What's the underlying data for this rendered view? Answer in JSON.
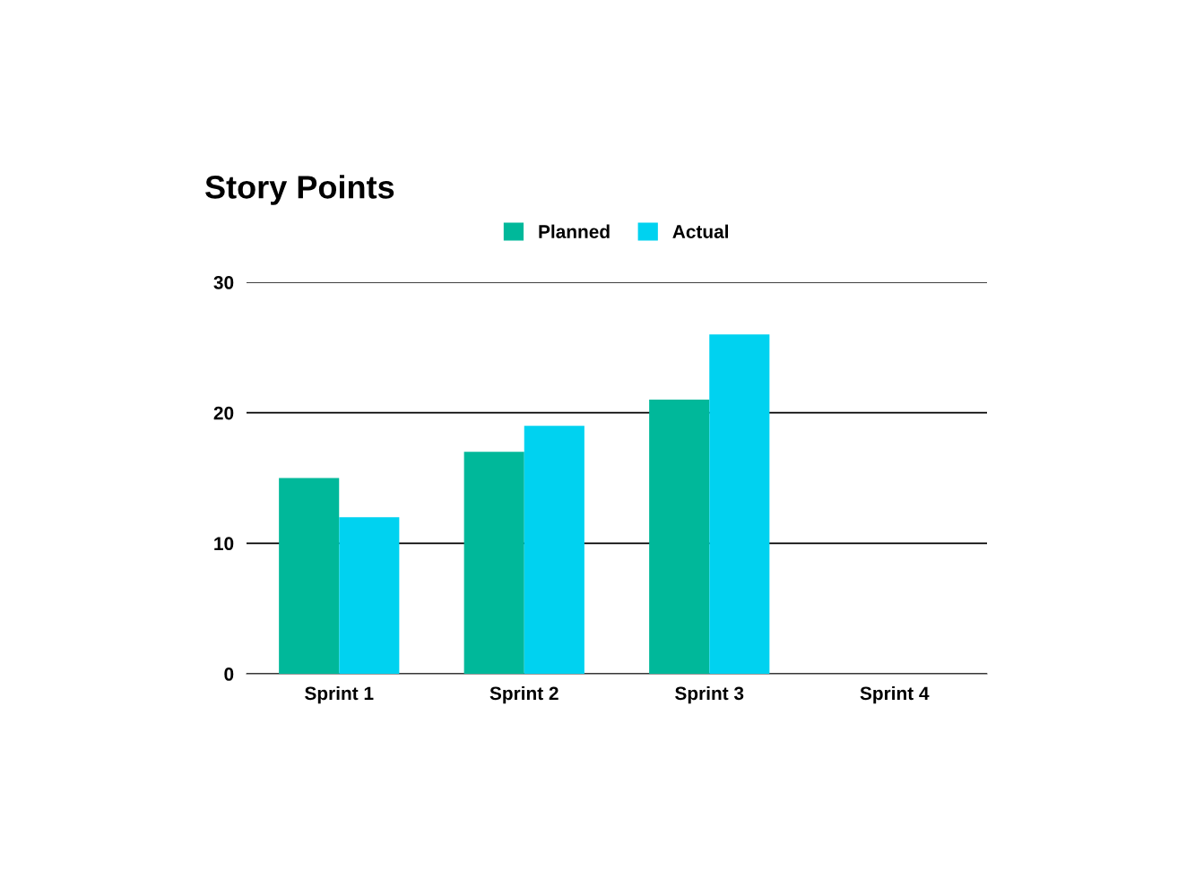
{
  "chart_data": {
    "type": "bar",
    "title": "Story Points",
    "categories": [
      "Sprint 1",
      "Sprint 2",
      "Sprint 3",
      "Sprint 4"
    ],
    "series": [
      {
        "name": "Planned",
        "color": "#00b89a",
        "values": [
          15,
          17,
          21,
          null
        ]
      },
      {
        "name": "Actual",
        "color": "#00d2f0",
        "values": [
          12,
          19,
          26,
          null
        ]
      }
    ],
    "ylim": [
      0,
      30
    ],
    "yticks": [
      0,
      10,
      20,
      30
    ],
    "grid": "y",
    "legend": "top"
  }
}
